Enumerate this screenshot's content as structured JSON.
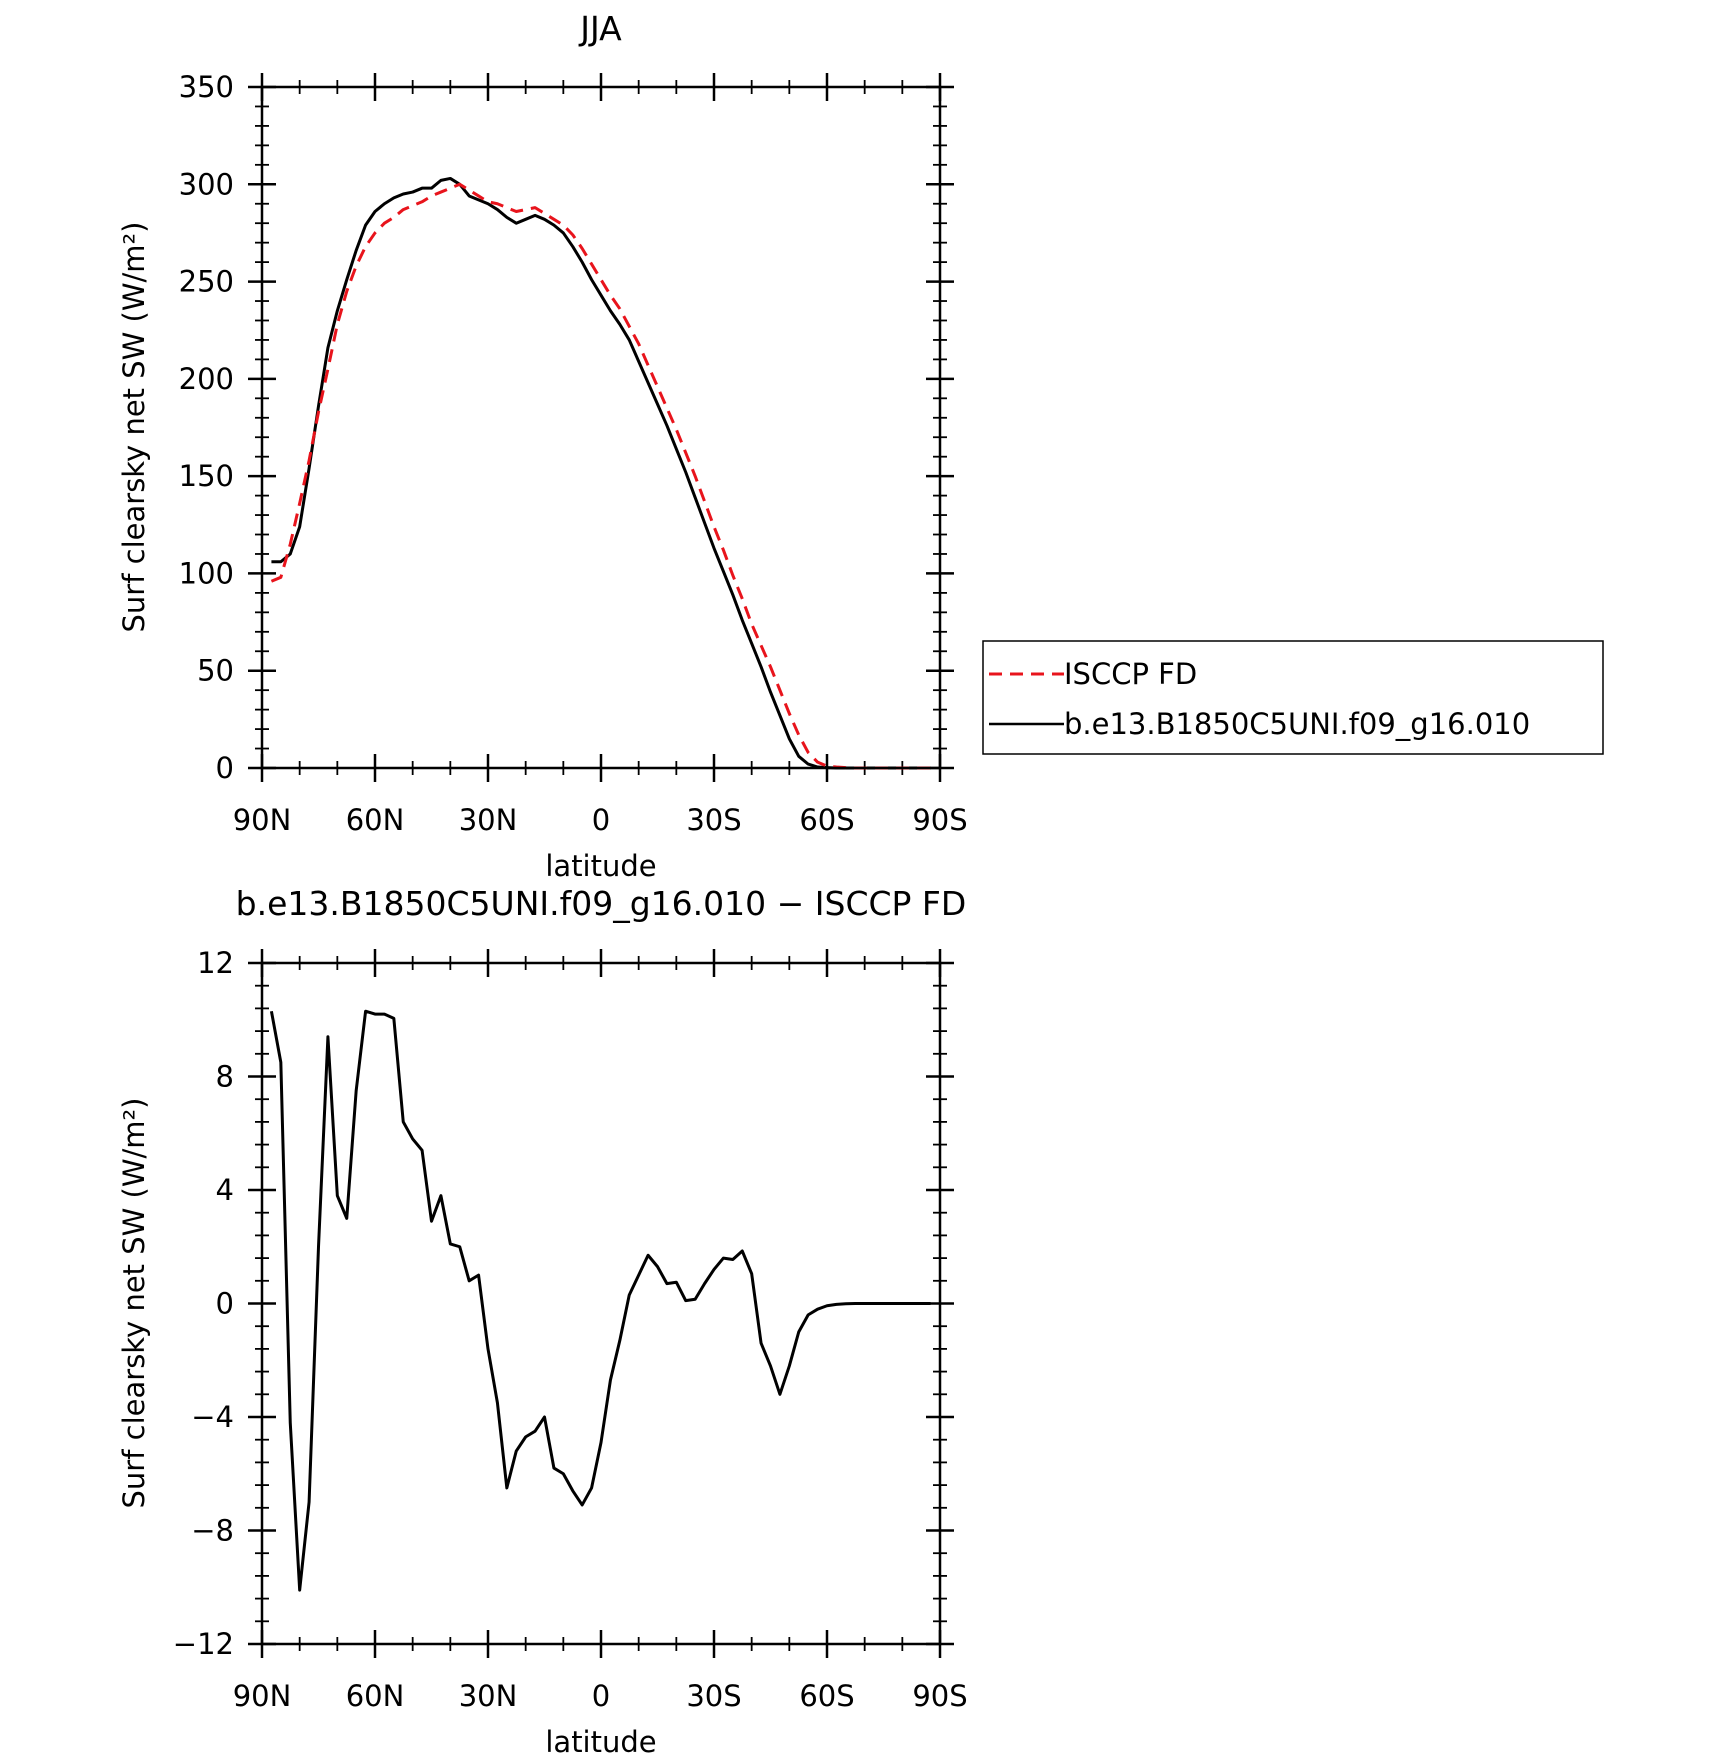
{
  "chart_data": [
    {
      "type": "line",
      "title": "JJA",
      "xlabel": "latitude",
      "ylabel": "Surf clearsky net SW (W/m²)",
      "xlim": [
        90,
        -90
      ],
      "ylim": [
        0,
        350
      ],
      "xticks": [
        90,
        60,
        30,
        0,
        -30,
        -60,
        -90
      ],
      "xtick_labels": [
        "90N",
        "60N",
        "30N",
        "0",
        "30S",
        "60S",
        "90S"
      ],
      "yticks": [
        0,
        50,
        100,
        150,
        200,
        250,
        300,
        350
      ],
      "ytick_labels": [
        "0",
        "50",
        "100",
        "150",
        "200",
        "250",
        "300",
        "350"
      ],
      "legend_position": "right",
      "series": [
        {
          "name": "ISCCP FD",
          "color": "#e8141c",
          "style": "dashed",
          "x": [
            87.5,
            85,
            82.5,
            80,
            77.5,
            75,
            72.5,
            70,
            67.5,
            65,
            62.5,
            60,
            57.5,
            55,
            52.5,
            50,
            47.5,
            45,
            42.5,
            40,
            37.5,
            35,
            32.5,
            30,
            27.5,
            25,
            22.5,
            20,
            17.5,
            15,
            12.5,
            10,
            7.5,
            5,
            2.5,
            0,
            -2.5,
            -5,
            -7.5,
            -10,
            -12.5,
            -15,
            -17.5,
            -20,
            -22.5,
            -25,
            -27.5,
            -30,
            -32.5,
            -35,
            -37.5,
            -40,
            -42.5,
            -45,
            -47.5,
            -50,
            -52.5,
            -55,
            -57.5,
            -60,
            -62.5,
            -65,
            -67.5,
            -70,
            -72.5,
            -75,
            -77.5,
            -80,
            -82.5,
            -85,
            -87.5
          ],
          "y": [
            96,
            98,
            115,
            136,
            158,
            183,
            205,
            228,
            245,
            258,
            268,
            275,
            280,
            283,
            287,
            289,
            291,
            294,
            296,
            298,
            300,
            297,
            294,
            291,
            290,
            288,
            286,
            287,
            288,
            285,
            282,
            279,
            274,
            267,
            259,
            251,
            243,
            236,
            227,
            218,
            207,
            196,
            185,
            174,
            162,
            150,
            137,
            124,
            112,
            99,
            87,
            74,
            63,
            52,
            40,
            28,
            17,
            8,
            3,
            1,
            0.5,
            0.2,
            0,
            0,
            0,
            0,
            0,
            0,
            0,
            0,
            0
          ]
        },
        {
          "name": "b.e13.B1850C5UNI.f09_g16.010",
          "color": "#000000",
          "style": "solid",
          "x": [
            87.5,
            85,
            82.5,
            80,
            77.5,
            75,
            72.5,
            70,
            67.5,
            65,
            62.5,
            60,
            57.5,
            55,
            52.5,
            50,
            47.5,
            45,
            42.5,
            40,
            37.5,
            35,
            32.5,
            30,
            27.5,
            25,
            22.5,
            20,
            17.5,
            15,
            12.5,
            10,
            7.5,
            5,
            2.5,
            0,
            -2.5,
            -5,
            -7.5,
            -10,
            -12.5,
            -15,
            -17.5,
            -20,
            -22.5,
            -25,
            -27.5,
            -30,
            -32.5,
            -35,
            -37.5,
            -40,
            -42.5,
            -45,
            -47.5,
            -50,
            -52.5,
            -55,
            -57.5,
            -60,
            -62.5,
            -65,
            -67.5,
            -70,
            -72.5,
            -75,
            -77.5,
            -80,
            -82.5,
            -85,
            -87.5
          ],
          "y": [
            106,
            106,
            110,
            124,
            154,
            186,
            216,
            235,
            251,
            266,
            279,
            286,
            290,
            293,
            295,
            296,
            298,
            298,
            302,
            303,
            300,
            294,
            292,
            290,
            287,
            283,
            280,
            282,
            284,
            282,
            279,
            275,
            268,
            260,
            251,
            243,
            235,
            228,
            220,
            209,
            198,
            187,
            176,
            164,
            152,
            139,
            126,
            113,
            101,
            89,
            76,
            64,
            52,
            39,
            27,
            15,
            6,
            2,
            0.5,
            0.2,
            0,
            0,
            0,
            0,
            0,
            0,
            0,
            0,
            0,
            0,
            0
          ]
        }
      ]
    },
    {
      "type": "line",
      "title": "b.e13.B1850C5UNI.f09_g16.010 − ISCCP FD",
      "xlabel": "latitude",
      "ylabel": "Surf clearsky net SW (W/m²)",
      "xlim": [
        90,
        -90
      ],
      "ylim": [
        -12,
        12
      ],
      "xticks": [
        90,
        60,
        30,
        0,
        -30,
        -60,
        -90
      ],
      "xtick_labels": [
        "90N",
        "60N",
        "30N",
        "0",
        "30S",
        "60S",
        "90S"
      ],
      "yticks": [
        -12,
        -8,
        -4,
        0,
        4,
        8,
        12
      ],
      "ytick_labels": [
        "−12",
        "−8",
        "−4",
        "0",
        "4",
        "8",
        "12"
      ],
      "series": [
        {
          "color": "#000000",
          "style": "solid",
          "x": [
            87.5,
            85,
            82.5,
            80,
            77.5,
            75,
            72.5,
            70,
            67.5,
            65,
            62.5,
            60,
            57.5,
            55,
            52.5,
            50,
            47.5,
            45,
            42.5,
            40,
            37.5,
            35,
            32.5,
            30,
            27.5,
            25,
            22.5,
            20,
            17.5,
            15,
            12.5,
            10,
            7.5,
            5,
            2.5,
            0,
            -2.5,
            -5,
            -7.5,
            -10,
            -12.5,
            -15,
            -17.5,
            -20,
            -22.5,
            -25,
            -27.5,
            -30,
            -32.5,
            -35,
            -37.5,
            -40,
            -42.5,
            -45,
            -47.5,
            -50,
            -52.5,
            -55,
            -57.5,
            -60,
            -62.5,
            -65,
            -67.5,
            -70,
            -72.5,
            -75,
            -77.5,
            -80,
            -82.5,
            -85,
            -87.5
          ],
          "y": [
            10.3,
            8.5,
            -4.2,
            -10.1,
            -7.0,
            2.0,
            9.4,
            3.8,
            3.0,
            7.5,
            10.3,
            10.2,
            10.2,
            10.05,
            6.4,
            5.8,
            5.4,
            2.9,
            3.8,
            2.1,
            2.0,
            0.8,
            1.0,
            -1.6,
            -3.5,
            -6.5,
            -5.2,
            -4.7,
            -4.5,
            -4.0,
            -5.8,
            -6.0,
            -6.6,
            -7.1,
            -6.5,
            -4.9,
            -2.7,
            -1.3,
            0.3,
            1.0,
            1.7,
            1.3,
            0.7,
            0.75,
            0.1,
            0.15,
            0.7,
            1.2,
            1.6,
            1.55,
            1.85,
            1.05,
            -1.4,
            -2.2,
            -3.2,
            -2.2,
            -1.0,
            -0.4,
            -0.2,
            -0.08,
            -0.03,
            -0.01,
            0,
            0,
            0,
            0,
            0,
            0,
            0,
            0,
            0
          ]
        }
      ]
    }
  ]
}
